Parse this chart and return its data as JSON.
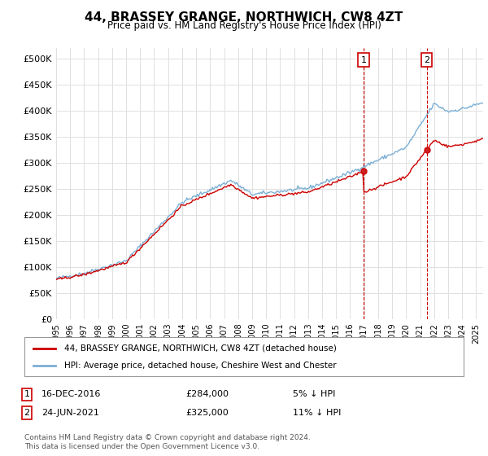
{
  "title": "44, BRASSEY GRANGE, NORTHWICH, CW8 4ZT",
  "subtitle": "Price paid vs. HM Land Registry's House Price Index (HPI)",
  "yticks": [
    0,
    50000,
    100000,
    150000,
    200000,
    250000,
    300000,
    350000,
    400000,
    450000,
    500000
  ],
  "ylim": [
    0,
    520000
  ],
  "xlim_start": 1995.0,
  "xlim_end": 2025.5,
  "hpi_color": "#7bafd4",
  "price_color": "#cc0000",
  "transaction1_date": 2016.96,
  "transaction1_price": 284000,
  "transaction1_label": "1",
  "transaction2_date": 2021.48,
  "transaction2_price": 325000,
  "transaction2_label": "2",
  "legend_label1": "44, BRASSEY GRANGE, NORTHWICH, CW8 4ZT (detached house)",
  "legend_label2": "HPI: Average price, detached house, Cheshire West and Chester",
  "footnote": "Contains HM Land Registry data © Crown copyright and database right 2024.\nThis data is licensed under the Open Government Licence v3.0.",
  "background_color": "#ffffff",
  "grid_color": "#e0e0e0"
}
